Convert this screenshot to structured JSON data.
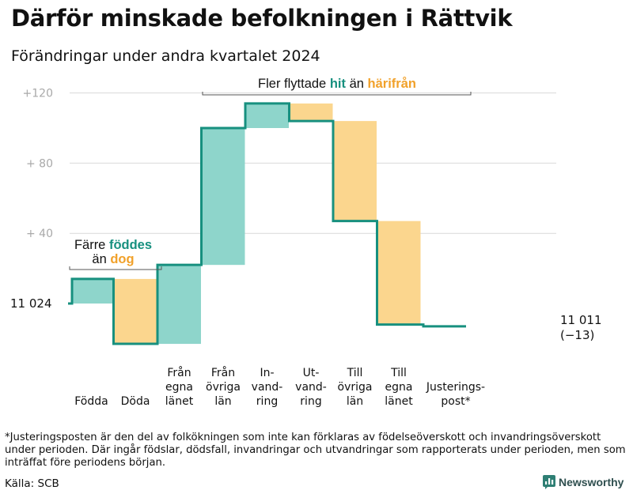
{
  "title": "Därför minskade befolkningen i Rättvik",
  "subtitle": "Förändringar under andra kvartalet 2024",
  "chart_data": {
    "type": "waterfall",
    "y_ticks": [
      {
        "value": 120,
        "label": "+120"
      },
      {
        "value": 80,
        "label": "+  80"
      },
      {
        "value": 40,
        "label": "+  40"
      }
    ],
    "start": {
      "label": "11  024",
      "value": 11024
    },
    "end": {
      "label": "11 011",
      "sublabel": "(−13)",
      "value": 11011
    },
    "steps": [
      {
        "label": [
          "Födda"
        ],
        "value": 14,
        "kind": "plus"
      },
      {
        "label": [
          "Döda"
        ],
        "value": -37,
        "kind": "minus"
      },
      {
        "label": [
          "Från",
          "egna",
          "länet"
        ],
        "value": 45,
        "kind": "plus"
      },
      {
        "label": [
          "Från",
          "övriga",
          "län"
        ],
        "value": 78,
        "kind": "plus"
      },
      {
        "label": [
          "In-",
          "vand-",
          "ring"
        ],
        "value": 14,
        "kind": "plus"
      },
      {
        "label": [
          "Ut-",
          "vand-",
          "ring"
        ],
        "value": -10,
        "kind": "minus"
      },
      {
        "label": [
          "Till",
          "övriga",
          "län"
        ],
        "value": -57,
        "kind": "minus"
      },
      {
        "label": [
          "Till",
          "egna",
          "länet"
        ],
        "value": -59,
        "kind": "minus"
      },
      {
        "label": [
          "Justerings-",
          "post*"
        ],
        "value": -1,
        "kind": "adjust"
      }
    ],
    "annotations": {
      "left": {
        "line1": "Färre",
        "line1_hl": "föddes",
        "line2": "än",
        "line2_hl": "dog"
      },
      "top": {
        "pre": "Fler flyttade",
        "hl1": "hit",
        "mid": "än",
        "hl2": "härifrån"
      }
    },
    "colors": {
      "plus": "#8ed5cb",
      "minus": "#fbd68e",
      "line": "#17907f",
      "plus_text": "#17907f",
      "minus_text": "#f1a12a",
      "grid": "#d9d9d9",
      "tick": "#a9a9a9"
    }
  },
  "note": "*Justeringsposten är den del av folkökningen som inte kan förklaras av födelseöverskott och invandringsöverskott under perioden. Där ingår födslar, dödsfall, invandringar och utvandringar som rapporterats under perioden, men som inträffat före periodens början.",
  "source": "Källa: SCB",
  "brand": {
    "name": "Newsworthy",
    "logo_icon": "bar-chart-logo-icon"
  }
}
